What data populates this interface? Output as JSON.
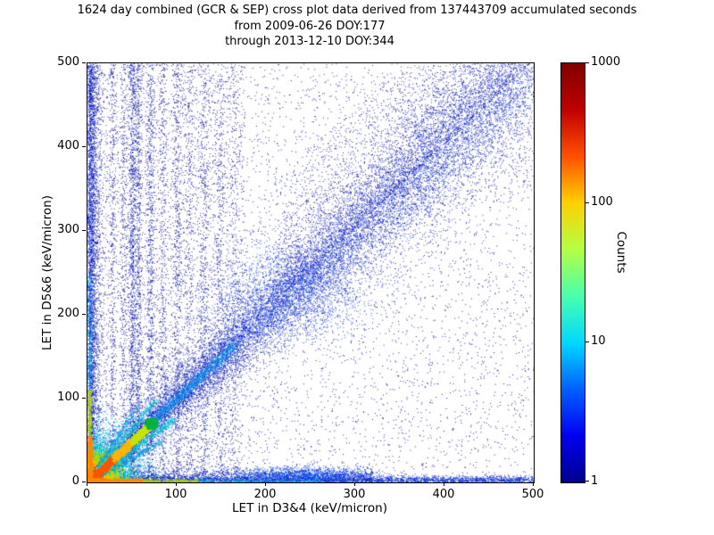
{
  "chart_data": {
    "type": "heatmap",
    "title": "1624 day combined (GCR & SEP) cross plot data derived from 137443709 accumulated seconds",
    "subtitle1": "from 2009-06-26 DOY:177",
    "subtitle2": "through 2013-12-10 DOY:344",
    "duration_days": 1624,
    "accumulated_seconds": 137443709,
    "start": "2009-06-26 DOY:177",
    "end": "2013-12-10 DOY:344",
    "xlabel": "LET in D3&4 (keV/micron)",
    "ylabel": "LET in D5&6 (keV/micron)",
    "xlim": [
      0,
      500
    ],
    "ylim": [
      0,
      500
    ],
    "xticks": [
      0,
      100,
      200,
      300,
      400,
      500
    ],
    "yticks": [
      0,
      100,
      200,
      300,
      400,
      500
    ],
    "grid": false,
    "colorbar": {
      "label": "Counts",
      "scale": "log",
      "min": 1,
      "max": 1000,
      "ticks": [
        1,
        10,
        100,
        1000
      ],
      "colormap": "jet",
      "stops": [
        "#00008f",
        "#0000f0",
        "#0060ff",
        "#00d8ff",
        "#48ffaf",
        "#b4ff43",
        "#ffd000",
        "#ff5000",
        "#c00000",
        "#800000"
      ]
    },
    "seed": 1624,
    "features": [
      {
        "kind": "uniform",
        "n": 5200,
        "xr": [
          0,
          500
        ],
        "yr": [
          0,
          500
        ],
        "color": "#00008f",
        "size": 1,
        "alpha": 0.85
      },
      {
        "kind": "uniform",
        "n": 2400,
        "xr": [
          0,
          175
        ],
        "yr": [
          0,
          500
        ],
        "color": "#00008f",
        "size": 1,
        "alpha": 0.8
      },
      {
        "kind": "fan",
        "n": 2600,
        "xr": [
          210,
          500
        ],
        "off": [
          5,
          150
        ],
        "pow": 1.8,
        "color": "#00008f",
        "size": 1,
        "alpha": 0.8
      },
      {
        "kind": "vband",
        "x": 28,
        "sd": 2,
        "yr": [
          10,
          500
        ],
        "n": 420,
        "color": "#000a9a",
        "size": 1
      },
      {
        "kind": "vband",
        "x": 40,
        "sd": 2,
        "yr": [
          10,
          500
        ],
        "n": 340,
        "color": "#000a9a",
        "size": 1
      },
      {
        "kind": "vband",
        "x": 50,
        "sd": 2.5,
        "yr": [
          10,
          500
        ],
        "n": 1100,
        "color": "#0010aa",
        "size": 1
      },
      {
        "kind": "vband",
        "x": 57,
        "sd": 2,
        "yr": [
          10,
          500
        ],
        "n": 680,
        "color": "#0010aa",
        "size": 1
      },
      {
        "kind": "vband",
        "x": 70,
        "sd": 2.5,
        "yr": [
          10,
          500
        ],
        "n": 780,
        "color": "#0010aa",
        "size": 1
      },
      {
        "kind": "vband",
        "x": 84,
        "sd": 2.5,
        "yr": [
          15,
          500
        ],
        "n": 430,
        "color": "#000a9a",
        "size": 1
      },
      {
        "kind": "vband",
        "x": 100,
        "sd": 3,
        "yr": [
          15,
          500
        ],
        "n": 620,
        "color": "#000a9a",
        "size": 1
      },
      {
        "kind": "vband",
        "x": 114,
        "sd": 3,
        "yr": [
          15,
          500
        ],
        "n": 360,
        "color": "#000a9a",
        "size": 1
      },
      {
        "kind": "vband",
        "x": 130,
        "sd": 3,
        "yr": [
          15,
          500
        ],
        "n": 500,
        "color": "#000a9a",
        "size": 1
      },
      {
        "kind": "vband",
        "x": 148,
        "sd": 3.5,
        "yr": [
          15,
          500
        ],
        "n": 430,
        "color": "#000a9a",
        "size": 1
      },
      {
        "kind": "vband",
        "x": 164,
        "sd": 3.5,
        "yr": [
          15,
          500
        ],
        "n": 270,
        "color": "#000a9a",
        "size": 1
      },
      {
        "kind": "diag",
        "len": 500,
        "sd0": 5,
        "sdk": 0.08,
        "n": 12000,
        "color": "#0014b4",
        "size": 1,
        "alpha": 0.8
      },
      {
        "kind": "diag",
        "len": 500,
        "sd0": 2.5,
        "sdk": 0.04,
        "n": 5200,
        "color": "#0030dc",
        "size": 1,
        "alpha": 0.8
      },
      {
        "kind": "blob",
        "cx": 230,
        "cy": 227,
        "sx": 45,
        "sy": 28,
        "n": 1700,
        "color": "#0040f0",
        "size": 1,
        "alpha": 0.8
      },
      {
        "kind": "ray",
        "slope": 1,
        "t0": 72,
        "t1": 165,
        "sd": 3,
        "n": 1100,
        "color": "#0090e8",
        "size": 1
      },
      {
        "kind": "vband",
        "x": 3,
        "sd": 3,
        "yr": [
          0,
          500
        ],
        "n": 3000,
        "color": "#0018c8",
        "size": 1
      },
      {
        "kind": "vband",
        "x": 8,
        "sd": 5,
        "yr": [
          0,
          500
        ],
        "n": 1400,
        "color": "#0010a8",
        "size": 1
      },
      {
        "kind": "hband",
        "y": 3,
        "sd": 2.5,
        "xr": [
          0,
          500
        ],
        "n": 3800,
        "color": "#0028d0",
        "size": 1
      },
      {
        "kind": "hband",
        "y": 8,
        "sd": 5,
        "xr": [
          0,
          320
        ],
        "n": 1700,
        "color": "#0018b8",
        "size": 1
      },
      {
        "kind": "blob",
        "cx": 240,
        "cy": 9,
        "sx": 38,
        "sy": 5,
        "n": 1100,
        "color": "#0048f0",
        "size": 1
      },
      {
        "kind": "blob",
        "cx": 0,
        "cy": 0,
        "sx": 30,
        "sy": 30,
        "n": 2600,
        "color": "#00b4f0",
        "size": 1,
        "half": true
      },
      {
        "kind": "blob",
        "cx": 0,
        "cy": 0,
        "sx": 20,
        "sy": 20,
        "n": 2200,
        "color": "#00e0a8",
        "size": 1,
        "half": true
      },
      {
        "kind": "blob",
        "cx": 0,
        "cy": 0,
        "sx": 13,
        "sy": 13,
        "n": 2200,
        "color": "#aadc00",
        "size": 2,
        "half": true
      },
      {
        "kind": "blob",
        "cx": 0,
        "cy": 0,
        "sx": 8,
        "sy": 8,
        "n": 2600,
        "color": "#ffc000",
        "size": 2,
        "half": true
      },
      {
        "kind": "blob",
        "cx": 0,
        "cy": 0,
        "sx": 5,
        "sy": 5,
        "n": 2600,
        "color": "#ff4400",
        "size": 2,
        "half": true
      },
      {
        "kind": "blob",
        "cx": 0,
        "cy": 0,
        "sx": 2.5,
        "sy": 2.5,
        "n": 1600,
        "color": "#c00000",
        "size": 2,
        "half": true
      },
      {
        "kind": "ray",
        "slope": 0.78,
        "t0": 5,
        "t1": 96,
        "sd": 2,
        "n": 700,
        "color": "#00c4d8",
        "size": 1
      },
      {
        "kind": "ray",
        "slope": 0.6,
        "t0": 5,
        "t1": 82,
        "sd": 2,
        "n": 440,
        "color": "#0094e0",
        "size": 1
      },
      {
        "kind": "ray",
        "slope": 1.3,
        "t0": 5,
        "t1": 76,
        "sd": 2,
        "n": 540,
        "color": "#00c4d8",
        "size": 1
      },
      {
        "kind": "ray",
        "slope": 1.65,
        "t0": 5,
        "t1": 56,
        "sd": 2,
        "n": 340,
        "color": "#0094e0",
        "size": 1
      },
      {
        "kind": "ray",
        "slope": 1,
        "t0": 2,
        "t1": 30,
        "sd": 1.8,
        "n": 900,
        "color": "#ff5400",
        "size": 2
      },
      {
        "kind": "ray",
        "slope": 1,
        "t0": 30,
        "t1": 50,
        "sd": 1.8,
        "n": 800,
        "color": "#ffb400",
        "size": 2
      },
      {
        "kind": "ray",
        "slope": 1,
        "t0": 50,
        "t1": 70,
        "sd": 1.8,
        "n": 800,
        "color": "#c8e400",
        "size": 2
      },
      {
        "kind": "blob",
        "cx": 71,
        "cy": 71,
        "sx": 2.5,
        "sy": 2.5,
        "n": 500,
        "color": "#00b440",
        "size": 2
      },
      {
        "kind": "vband",
        "x": 2,
        "sd": 1.3,
        "yr": [
          0,
          55
        ],
        "n": 620,
        "color": "#ff8800",
        "size": 2
      },
      {
        "kind": "hband",
        "y": 2,
        "sd": 1.3,
        "xr": [
          0,
          62
        ],
        "n": 620,
        "color": "#ff8800",
        "size": 2
      },
      {
        "kind": "vband",
        "x": 2,
        "sd": 1.3,
        "yr": [
          55,
          112
        ],
        "n": 340,
        "color": "#b4d400",
        "size": 1
      },
      {
        "kind": "hband",
        "y": 2,
        "sd": 1.3,
        "xr": [
          62,
          124
        ],
        "n": 340,
        "color": "#b4d400",
        "size": 1
      },
      {
        "kind": "vband",
        "x": 2,
        "sd": 1.6,
        "yr": [
          112,
          250
        ],
        "n": 300,
        "color": "#00b4d8",
        "size": 1
      },
      {
        "kind": "hband",
        "y": 2,
        "sd": 1.6,
        "xr": [
          124,
          260
        ],
        "n": 380,
        "color": "#00a8d8",
        "size": 1
      }
    ]
  }
}
